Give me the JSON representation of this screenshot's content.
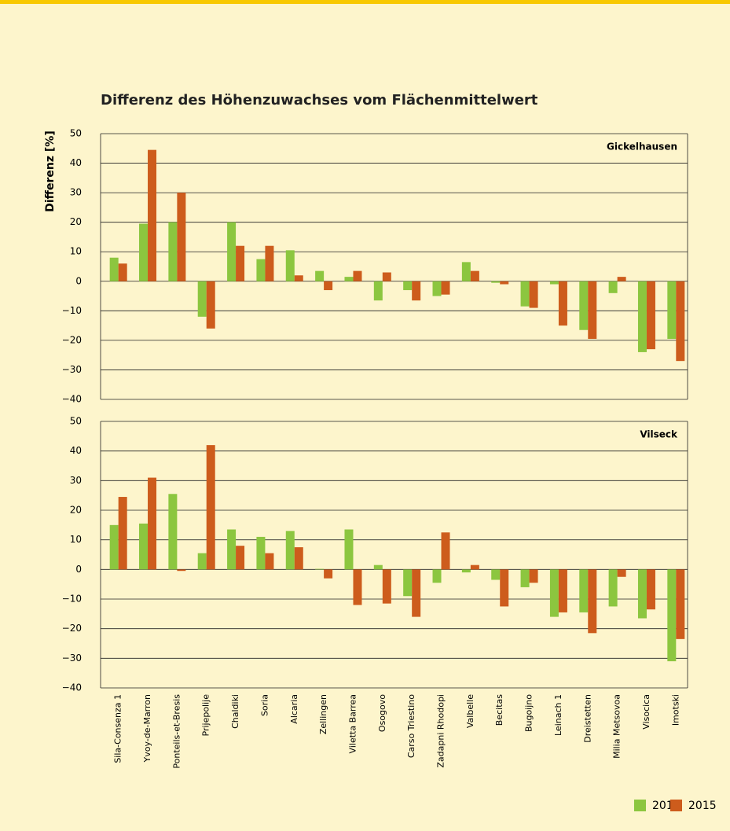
{
  "title": "Differenz des Höhenzuwachses vom Flächenmittelwert",
  "y_label": "Differenz [%]",
  "chart_data": [
    {
      "type": "bar",
      "title": "Gickelhausen",
      "ylim": [
        -40,
        50
      ],
      "yticks": [
        {
          "value": -40,
          "label": "−40"
        },
        {
          "value": -30,
          "label": "−30"
        },
        {
          "value": -20,
          "label": "−20"
        },
        {
          "value": -10,
          "label": "−10"
        },
        0,
        10,
        20,
        30,
        40,
        50
      ],
      "grid": true,
      "series": [
        {
          "color": "#8cc63f",
          "values": [
            8,
            19.5,
            20,
            -12,
            20,
            7.5,
            10.5,
            3.5,
            1.5,
            -6.5,
            -3,
            -5,
            6.5,
            -0.5,
            -8.5,
            -1,
            -16.5,
            -4,
            -24,
            -19.5
          ]
        },
        {
          "color": "#cd5c1c",
          "values": [
            6,
            44.5,
            30,
            -16,
            12,
            12,
            2,
            -3,
            3.5,
            3,
            -6.5,
            -4.5,
            3.5,
            -1,
            -9,
            -15,
            -19.5,
            1.5,
            -23,
            -27
          ]
        }
      ]
    },
    {
      "type": "bar",
      "title": "Vilseck",
      "ylim": [
        -40,
        50
      ],
      "yticks": [
        {
          "value": -40,
          "label": "−40"
        },
        {
          "value": -30,
          "label": "−30"
        },
        {
          "value": -20,
          "label": "−20"
        },
        {
          "value": -10,
          "label": "−10"
        },
        0,
        10,
        20,
        30,
        40,
        50
      ],
      "grid": true,
      "categories": [
        "Sila-Consenza 1",
        "Yvoy-de-Marron",
        "Ponteils-et-Bresis",
        "Prijepolije",
        "Chaldiki",
        "Soria",
        "Alcaria",
        "Zellingen",
        "Viletta Barrea",
        "Osogovo",
        "Carso Triestino",
        "Zadapni Rhodopi",
        "Valbelle",
        "Becitas",
        "Bugoijno",
        "Leinach 1",
        "Dreistetten",
        "Milia Metsovoa",
        "Visocica",
        "Imotski"
      ],
      "series": [
        {
          "name": "2014",
          "color": "#8cc63f",
          "values": [
            15,
            15.5,
            25.5,
            5.5,
            13.5,
            11,
            13,
            0.2,
            13.5,
            1.5,
            -9,
            -4.5,
            -1,
            -3.5,
            -6,
            -16,
            -14.5,
            -12.5,
            -16.5,
            -31
          ]
        },
        {
          "name": "2015",
          "color": "#cd5c1c",
          "values": [
            24.5,
            31,
            -0.5,
            42,
            8,
            5.5,
            7.5,
            -3,
            -12,
            -11.5,
            -16,
            12.5,
            1.5,
            -12.5,
            -4.5,
            -14.5,
            -21.5,
            -2.5,
            -13.5,
            -23.5
          ]
        }
      ]
    }
  ]
}
